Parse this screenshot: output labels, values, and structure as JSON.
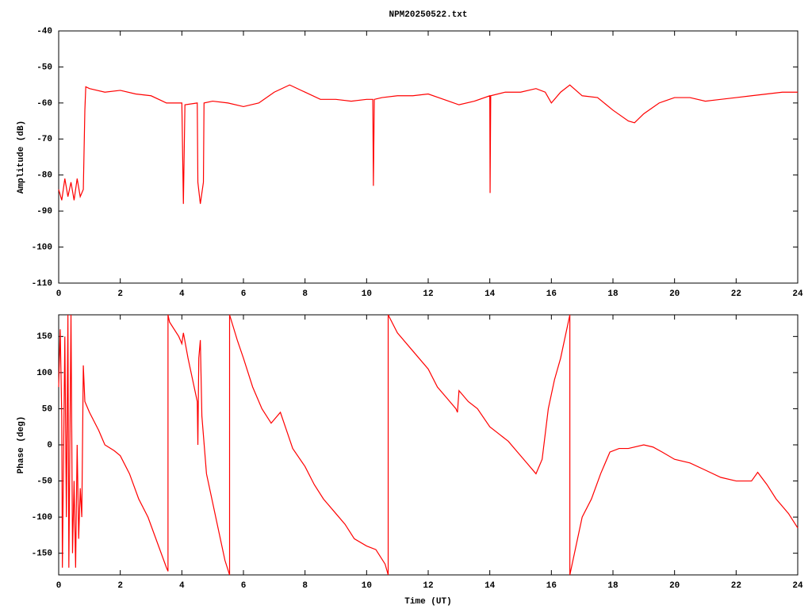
{
  "chart_data": [
    {
      "type": "line",
      "title": "NPM20250522.txt",
      "ylabel": "Amplitude (dB)",
      "color": "#ff0000",
      "xlim": [
        0,
        24
      ],
      "xticks": [
        0,
        2,
        4,
        6,
        8,
        10,
        12,
        14,
        16,
        18,
        20,
        22,
        24
      ],
      "ylim": [
        -110,
        -40
      ],
      "yticks": [
        -40,
        -50,
        -60,
        -70,
        -80,
        -90,
        -100,
        -110
      ],
      "x": [
        0,
        0.1,
        0.2,
        0.3,
        0.4,
        0.5,
        0.6,
        0.7,
        0.8,
        0.85,
        0.88,
        1.0,
        1.5,
        2.0,
        2.5,
        3.0,
        3.5,
        4.0,
        4.05,
        4.1,
        4.5,
        4.52,
        4.6,
        4.7,
        4.72,
        5.0,
        5.5,
        6.0,
        6.5,
        7.0,
        7.5,
        8.0,
        8.5,
        9.0,
        9.5,
        10.0,
        10.2,
        10.22,
        10.25,
        10.5,
        11.0,
        11.5,
        12.0,
        12.5,
        13.0,
        13.5,
        14.0,
        14.01,
        14.03,
        14.5,
        15.0,
        15.5,
        15.8,
        16.0,
        16.3,
        16.6,
        17.0,
        17.5,
        18.0,
        18.5,
        18.7,
        19.0,
        19.5,
        20.0,
        20.5,
        21.0,
        21.5,
        22.0,
        22.5,
        23.0,
        23.5,
        24.0
      ],
      "values": [
        -84,
        -87,
        -81,
        -86,
        -82,
        -87,
        -81,
        -86,
        -84,
        -62,
        -55.5,
        -56,
        -57,
        -56.5,
        -57.5,
        -58,
        -60,
        -60,
        -88,
        -60.5,
        -60,
        -82,
        -88,
        -82,
        -60,
        -59.5,
        -60,
        -61,
        -60,
        -57,
        -55,
        -57,
        -59,
        -59,
        -59.5,
        -59,
        -59,
        -83,
        -59,
        -58.5,
        -58,
        -58,
        -57.5,
        -59,
        -60.5,
        -59.5,
        -58,
        -85,
        -58,
        -57,
        -57,
        -56,
        -57,
        -60,
        -57,
        -55,
        -58,
        -58.5,
        -62,
        -65,
        -65.5,
        -63,
        -60,
        -58.5,
        -58.5,
        -59.5,
        -59,
        -58.5,
        -58,
        -57.5,
        -57,
        -57
      ]
    },
    {
      "type": "line",
      "ylabel": "Phase (deg)",
      "xlabel": "Time (UT)",
      "color": "#ff0000",
      "xlim": [
        0,
        24
      ],
      "xticks": [
        0,
        2,
        4,
        6,
        8,
        10,
        12,
        14,
        16,
        18,
        20,
        22,
        24
      ],
      "ylim": [
        -180,
        180
      ],
      "yticks": [
        150,
        100,
        50,
        0,
        -50,
        -100,
        -150
      ],
      "x": [
        0,
        0.05,
        0.1,
        0.12,
        0.2,
        0.25,
        0.3,
        0.33,
        0.4,
        0.45,
        0.5,
        0.55,
        0.6,
        0.65,
        0.7,
        0.75,
        0.8,
        0.85,
        1.0,
        1.3,
        1.5,
        1.8,
        2.0,
        2.3,
        2.6,
        2.9,
        3.2,
        3.5,
        3.55,
        3.55,
        3.6,
        3.9,
        4.0,
        4.05,
        4.2,
        4.4,
        4.5,
        4.52,
        4.55,
        4.6,
        4.65,
        4.8,
        5.0,
        5.2,
        5.4,
        5.55,
        5.55,
        5.8,
        6.0,
        6.3,
        6.6,
        6.9,
        7.2,
        7.4,
        7.6,
        8.0,
        8.3,
        8.6,
        9.0,
        9.3,
        9.6,
        10.0,
        10.3,
        10.6,
        10.7,
        10.7,
        11.0,
        11.5,
        12.0,
        12.3,
        12.6,
        12.9,
        12.95,
        13.0,
        13.3,
        13.6,
        14.0,
        14.3,
        14.6,
        14.9,
        15.2,
        15.5,
        15.7,
        15.9,
        16.1,
        16.3,
        16.6,
        16.6,
        16.8,
        17.0,
        17.3,
        17.6,
        17.9,
        18.2,
        18.5,
        19.0,
        19.3,
        19.6,
        20.0,
        20.5,
        21.0,
        21.5,
        22.0,
        22.5,
        22.7,
        23.0,
        23.3,
        23.7,
        24.0
      ],
      "values": [
        80,
        160,
        40,
        -170,
        150,
        -100,
        180,
        -170,
        180,
        -150,
        -50,
        -170,
        0,
        -130,
        -60,
        -100,
        110,
        60,
        45,
        20,
        0,
        -8,
        -15,
        -40,
        -75,
        -100,
        -135,
        -170,
        -175,
        180,
        170,
        150,
        140,
        155,
        120,
        80,
        60,
        0,
        120,
        145,
        40,
        -40,
        -80,
        -120,
        -160,
        -180,
        180,
        145,
        120,
        80,
        50,
        30,
        45,
        20,
        -5,
        -30,
        -55,
        -75,
        -95,
        -110,
        -130,
        -140,
        -145,
        -165,
        -180,
        180,
        155,
        130,
        105,
        80,
        65,
        50,
        45,
        75,
        60,
        50,
        25,
        15,
        5,
        -10,
        -25,
        -40,
        -20,
        50,
        90,
        120,
        180,
        -180,
        -140,
        -100,
        -75,
        -40,
        -10,
        -5,
        -5,
        0,
        -3,
        -10,
        -20,
        -25,
        -35,
        -45,
        -50,
        -50,
        -38,
        -55,
        -75,
        -95,
        -115
      ]
    }
  ]
}
